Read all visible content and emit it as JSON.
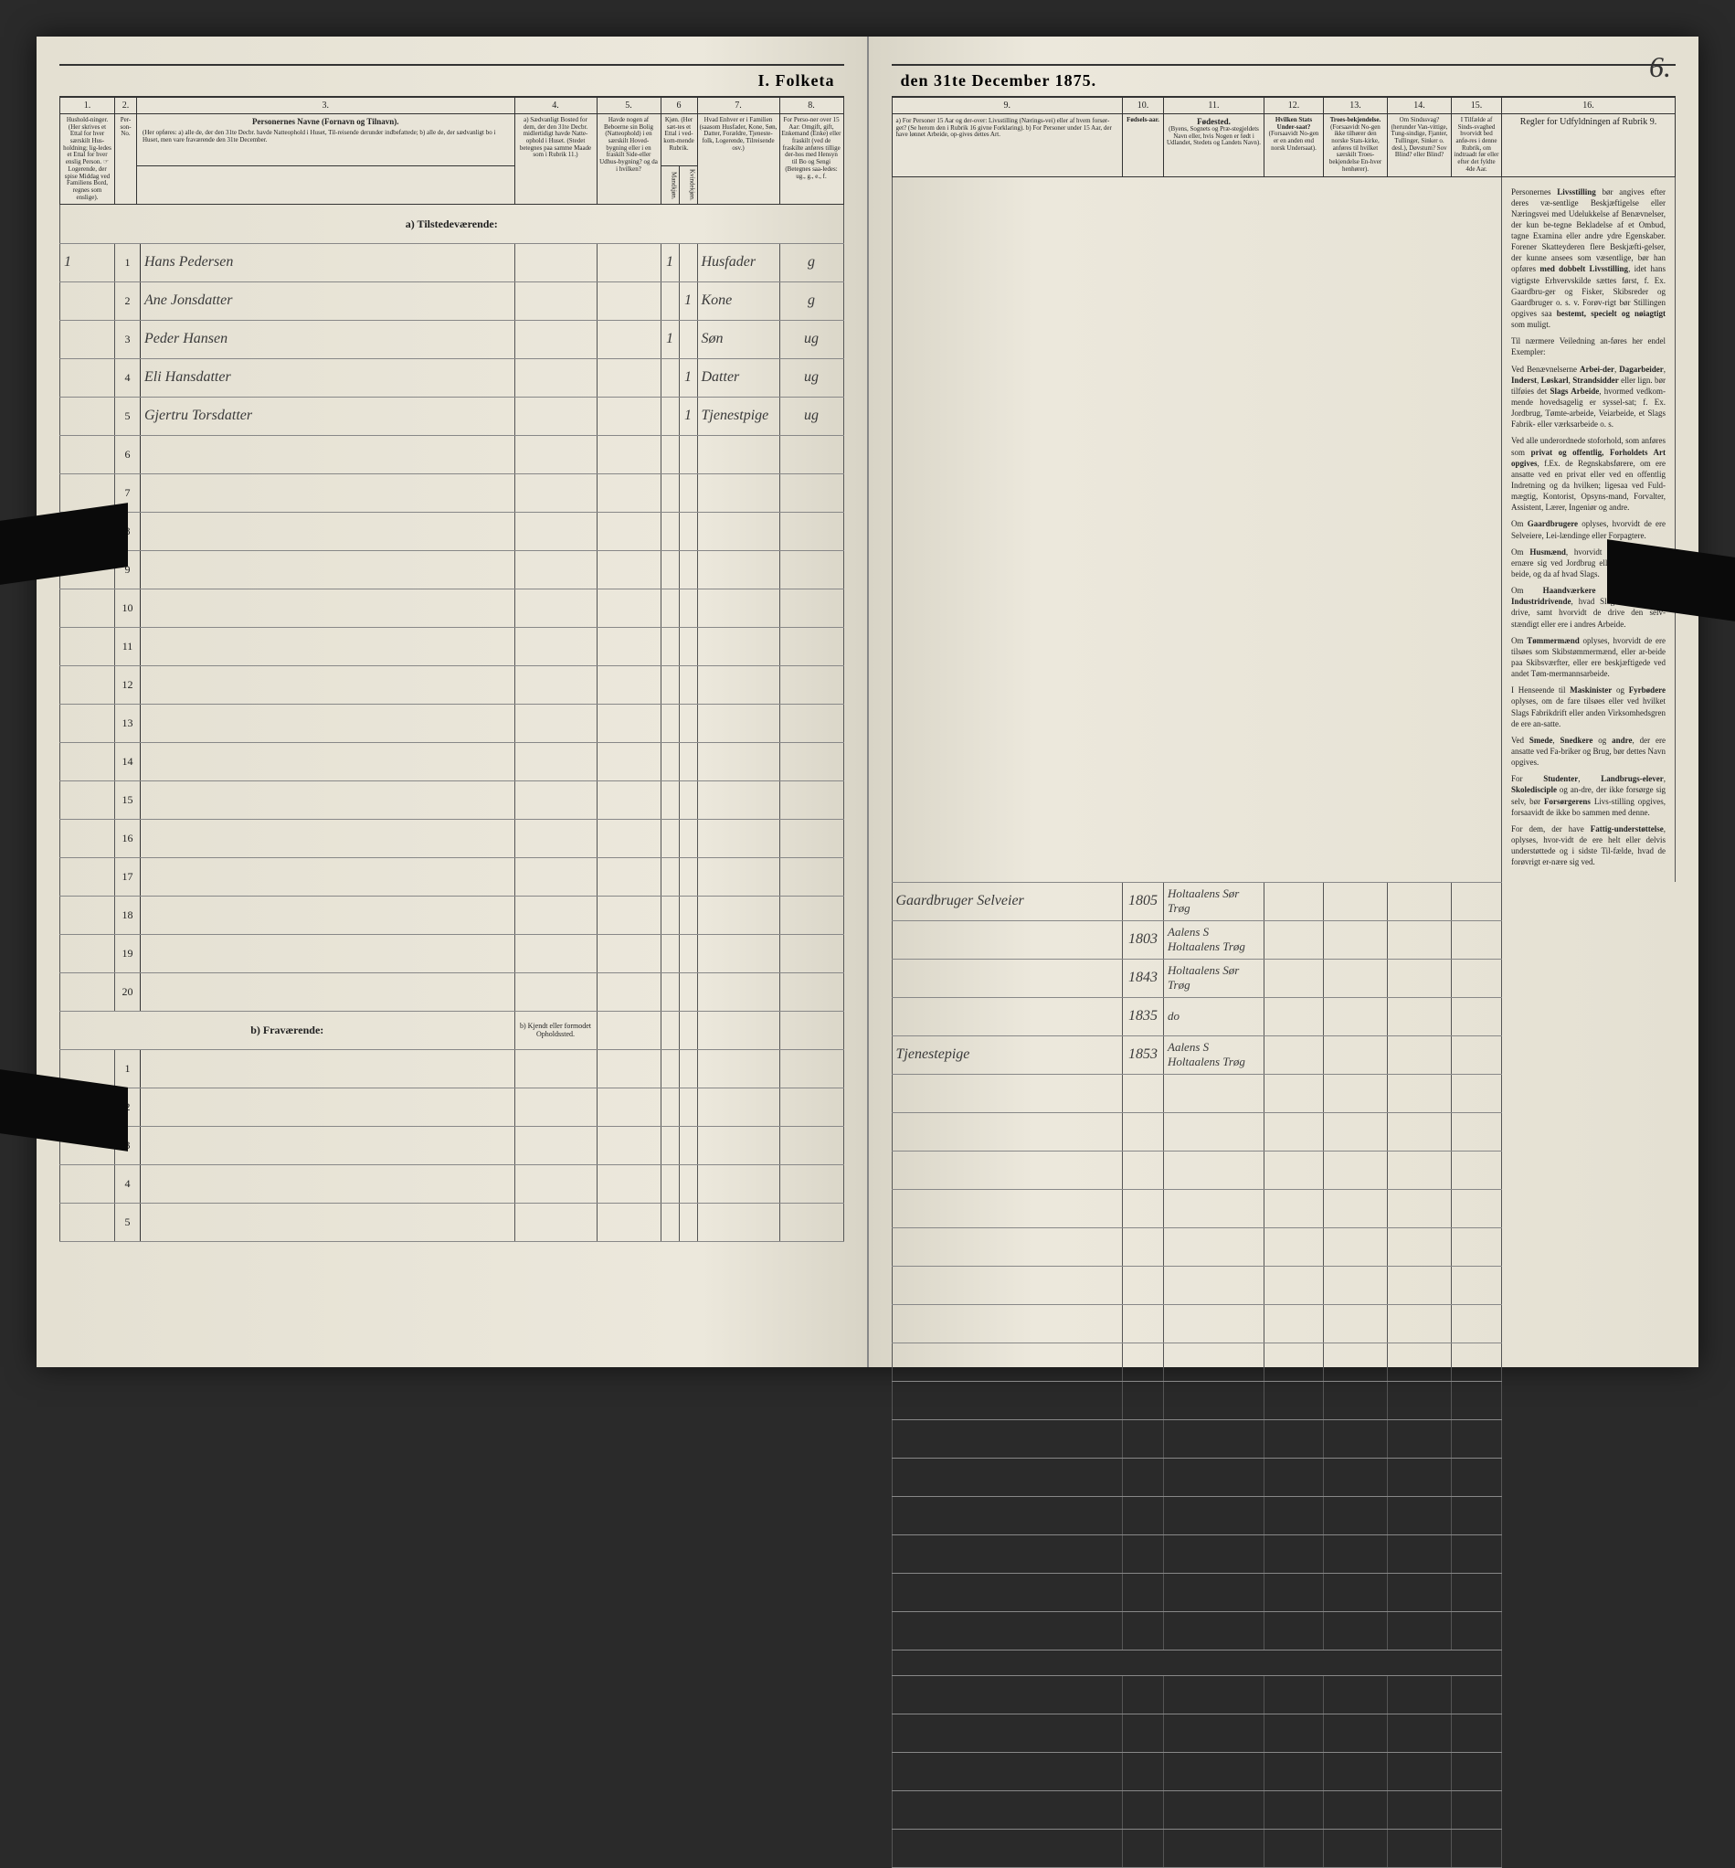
{
  "document": {
    "title_left": "I. Folketa",
    "title_right": "den 31te December 1875.",
    "page_number": "6."
  },
  "left_columns": {
    "nums": [
      "1.",
      "2.",
      "3.",
      "4.",
      "5.",
      "6",
      "7.",
      "8."
    ],
    "c1": "Hushold-ninger.\n(Her skrives et Ettal for hver særskilt Hus-holdning; lig-ledes et Ettal for hver enslig Person.\n☞ Logerende, der spise Middag ved Familiens Bord, regnes som enslige).",
    "c2": "Per-son-No.",
    "c3_title": "Personernes Navne (Fornavn og Tilnavn).",
    "c3_sub": "(Her opføres:\na) alle de, der den 31te Decbr. havde Natteophold i Huset, Til-reisende derunder indbefattede;\nb) alle de, der sædvanligt bo i Huset, men vare fraværende den 31te December.",
    "c4_title": "a) Sædvanligt Bosted for dem, der den 31te Decbr. midlertidigt havde Natte-ophold i Huset.\n(Stedet betegnes paa samme Maade som i Rubrik 11.)",
    "c5_title": "Havde nogen af Beboerne sin Bolig (Natteophold) i en særskilt Hoved-bygning eller i en fraskilt Side-eller Udhus-bygning? og da i hvilken?",
    "c6_title": "Kjøn.\n(Her sæt-tes et Ettal i ved-kom-mende Rubrik.",
    "c6_m": "Mandkjøn.",
    "c6_k": "Kvindekjøn.",
    "c7_title": "Hvad Enhver er i Familien\n(saasom Husfader, Kone, Søn, Datter, Forældre, Tjeneste-folk, Logerende, Tilreisende osv.)",
    "c8_title": "For Perso-ner over 15 Aar: Omgift, gift, Enkemand (Enke) eller fraskilt (ved de fraskilte anføres tillige der-hos med Hensyn til Bo og Sengi (Betegnes saa-ledes: ug., g., e., f."
  },
  "right_columns": {
    "nums": [
      "9.",
      "10.",
      "11.",
      "12.",
      "13.",
      "14.",
      "15.",
      "16."
    ],
    "c9": "a) For Personer 15 Aar og der-over: Livsstilling (Nærings-vei) eller af hvem forsør-get? (Se herom den i Rubrik 16 givne Forklaring).\nb) For Personer under 15 Aar, der have lønnet Arbeide, op-gives dettes Art.",
    "c10": "Fødsels-aar.",
    "c11_title": "Fødested.",
    "c11_sub": "(Byens, Sognets og Præ-stegjeldets Navn eller, hvis Nogen er født i Udlandet, Stedets og Landets Navn).",
    "c12_title": "Hvilken Stats Under-saat?",
    "c12_sub": "(Forsaavidt No-gen er en anden end norsk Undersaat).",
    "c13_title": "Troes-bekjendelse.",
    "c13_sub": "(Forsaavidt No-gen ikke tilhører den norske Stats-kirke, anføres til hvilket særskilt Troes-bekjendelse En-hver henhører).",
    "c14_title": "Om Sindssvag?\n(herunder Van-vittige, Tung-sindige, Fjanter, Tullinger, Sinker o. desl.), Døvstum? Sov Blind? eller Blind?",
    "c15_title": "I Tilfælde af Sinds-svaghed hvorvidt bed anfø-res i denne Rubrik, om indtraadt før eller efter det fyldte 4de Aar.",
    "c16_title": "Regler for Udfyldningen\naf\nRubrik 9."
  },
  "section_a": "a) Tilstedeværende:",
  "section_b": "b) Fraværende:",
  "section_b_col4": "b) Kjendt eller formodet Opholdssted.",
  "entries": [
    {
      "n": "1",
      "name": "Hans Pedersen",
      "c6": "1",
      "c7": "Husfader",
      "c8": "g",
      "c9": "Gaardbruger Selveier",
      "c10": "1805",
      "c11": "Holtaalens Sør Trøg"
    },
    {
      "n": "2",
      "name": "Ane Jonsdatter",
      "c6": "1",
      "c7": "Kone",
      "c8": "g",
      "c9": "",
      "c10": "1803",
      "c11": "Aalens S Holtaalens Trøg"
    },
    {
      "n": "3",
      "name": "Peder Hansen",
      "c6": "1",
      "c7": "Søn",
      "c8": "ug",
      "c9": "",
      "c10": "1843",
      "c11": "Holtaalens Sør Trøg"
    },
    {
      "n": "4",
      "name": "Eli Hansdatter",
      "c6": "1",
      "c7": "Datter",
      "c8": "ug",
      "c9": "",
      "c10": "1835",
      "c11": "do"
    },
    {
      "n": "5",
      "name": "Gjertru Torsdatter",
      "c6": "1",
      "c7": "Tjenestpige",
      "c8": "ug",
      "c9": "Tjenestepige",
      "c10": "1853",
      "c11": "Aalens S Holtaalens Trøg"
    }
  ],
  "blank_rows_a": [
    "6",
    "7",
    "8",
    "9",
    "10",
    "11",
    "12",
    "13",
    "14",
    "15",
    "16",
    "17",
    "18",
    "19",
    "20"
  ],
  "blank_rows_b": [
    "1",
    "2",
    "3",
    "4",
    "5"
  ],
  "instructions": {
    "p1": "Personernes Livsstilling bør angives efter deres væ-sentlige Beskjæftigelse eller Næringsvei med Udelukkelse af Benævnelser, der kun be-tegne Bekladelse af et Ombud, tagne Examina eller andre ydre Egenskaber. Forener Skatteyderen flere Beskjæfti-gelser, der kunne ansees som væsentlige, bør han opføres med dobbelt Livsstilling, idet hans vigtigste Erhvervskilde sættes først, f. Ex. Gaardbru-ger og Fisker, Skibsreder og Gaardbruger o. s. v. Forøv-rigt bør Stillingen opgives saa bestemt, specielt og nøiagtigt som muligt.",
    "p2": "Til nærmere Veiledning an-føres her endel Exempler:",
    "p3": "Ved Benævnelserne Arbei-der, Dagarbeider, Inderst, Løskarl, Strandsidder eller lign. bør tilføies det Slags Arbeide, hvormed vedkom-mende hovedsagelig er syssel-sat; f. Ex. Jordbrug, Tømte-arbeide, Veiarbeide, et Slags Fabrik- eller værksarbeide o. s.",
    "p4": "Ved alle underordnede stoforhold, som anføres som privat og offentlig, Forholdets Art opgives, f.Ex. de Regnskabsførere, om ere ansatte ved en privat eller ved en offentlig Indretning og da hvilken; ligesaa ved Fuld-mægtig, Kontorist, Opsyns-mand, Forvalter, Assistent, Lærer, Ingeniør og andre.",
    "p5": "Om Gaardbrugere oplyses, hvorvidt de ere Selveiere, Lei-lændinge eller Forpagtere.",
    "p6": "Om Husmænd, hvorvidt de hovedsagelig ernære sig ved Jordbrug eller ved andet Ar-beide, og da af hvad Slags.",
    "p7": "Om Haandværkere og an-dre Industridrivende, hvad Slags Industrie de drive, samt hvorvidt de drive den selv-stændigt eller ere i andres Arbeide.",
    "p8": "Om Tømmermænd oplyses, hvorvidt de ere tilsøes som Skibstømmermænd, eller ar-beide paa Skibsværfter, eller ere beskjæftigede ved andet Tøm-mermannsarbeide.",
    "p9": "I Henseende til Maskinister og Fyrbødere oplyses, om de fare tilsøes eller ved hvilket Slags Fabrikdrift eller anden Virksomhedsgren de ere an-satte.",
    "p10": "Ved Smede, Snedkere og andre, der ere ansatte ved Fa-briker og Brug, bør dettes Navn opgives.",
    "p11": "For Studenter, Landbrugs-elever, Skoledisciple og an-dre, der ikke forsørge sig selv, bør Forsørgerens Livs-stilling opgives, forsaavidt de ikke bo sammen med denne.",
    "p12": "For dem, der have Fattig-understøttelse, oplyses, hvor-vidt de ere helt eller delvis understøttede og i sidste Til-fælde, hvad de forøvrigt er-nære sig ved."
  }
}
